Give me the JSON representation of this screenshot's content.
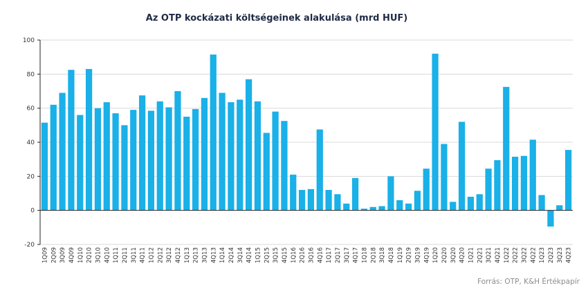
{
  "chart_data": {
    "type": "bar",
    "title": "Az OTP kockázati költségeinek alakulása (mrd HUF)",
    "xlabel": "",
    "ylabel": "",
    "ylim": [
      -20,
      100
    ],
    "yticks": [
      -20,
      0,
      20,
      40,
      60,
      80,
      100
    ],
    "grid": true,
    "bar_color": "#1ab0e8",
    "categories": [
      "1Q09",
      "2Q09",
      "3Q09",
      "4Q09",
      "1Q10",
      "2Q10",
      "3Q10",
      "4Q10",
      "1Q11",
      "2Q11",
      "3Q11",
      "4Q11",
      "1Q12",
      "2Q12",
      "3Q12",
      "4Q12",
      "1Q13",
      "2Q13",
      "3Q13",
      "4Q13",
      "1Q14",
      "2Q14",
      "3Q14",
      "4Q14",
      "1Q15",
      "2Q15",
      "3Q15",
      "4Q15",
      "1Q16",
      "2Q16",
      "3Q16",
      "4Q16",
      "1Q17",
      "2Q17",
      "3Q17",
      "4Q17",
      "1Q18",
      "2Q18",
      "3Q18",
      "4Q18",
      "1Q19",
      "2Q19",
      "3Q19",
      "4Q19",
      "1Q20",
      "2Q20",
      "3Q20",
      "4Q20",
      "1Q21",
      "2Q21",
      "3Q21",
      "4Q21",
      "1Q22",
      "2Q22",
      "3Q22",
      "4Q22",
      "1Q23",
      "2Q23",
      "3Q23",
      "4Q23"
    ],
    "values": [
      51.5,
      62,
      69,
      82.5,
      56,
      83,
      60,
      63.5,
      57,
      50,
      59,
      67.5,
      58.5,
      64,
      60.5,
      70,
      55,
      59.5,
      66,
      91.5,
      69,
      63.5,
      65,
      77,
      64,
      45.5,
      58,
      52.5,
      21,
      12,
      12.5,
      47.5,
      12,
      9.5,
      4,
      19,
      1,
      2,
      2.5,
      20,
      6,
      4,
      11.5,
      24.5,
      92,
      39,
      5,
      52,
      8,
      9.5,
      24.5,
      29.5,
      72.5,
      31.5,
      32,
      41.5,
      9,
      -9.5,
      3,
      35.5
    ]
  },
  "source": "Forrás: OTP, K&H Értékpapír"
}
